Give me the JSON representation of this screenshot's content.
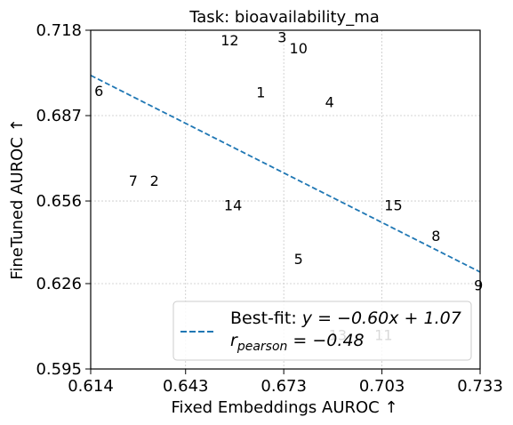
{
  "chart_data": {
    "type": "scatter",
    "title": "Task: bioavailability_ma",
    "xlabel": "Fixed Embeddings AUROC ↑",
    "ylabel": "FineTuned AUROC ↑",
    "xlim": [
      0.614,
      0.733
    ],
    "ylim": [
      0.595,
      0.718
    ],
    "xticks": [
      "0.614",
      "0.643",
      "0.673",
      "0.703",
      "0.733"
    ],
    "yticks": [
      "0.595",
      "0.626",
      "0.656",
      "0.687",
      "0.718"
    ],
    "grid": true,
    "points": [
      {
        "label": "1",
        "x": 0.666,
        "y": 0.6955
      },
      {
        "label": "2",
        "x": 0.6335,
        "y": 0.6635
      },
      {
        "label": "3",
        "x": 0.6725,
        "y": 0.7155
      },
      {
        "label": "4",
        "x": 0.687,
        "y": 0.692
      },
      {
        "label": "5",
        "x": 0.6775,
        "y": 0.635
      },
      {
        "label": "6",
        "x": 0.6165,
        "y": 0.696
      },
      {
        "label": "7",
        "x": 0.627,
        "y": 0.6635
      },
      {
        "label": "8",
        "x": 0.7195,
        "y": 0.6435
      },
      {
        "label": "9",
        "x": 0.7325,
        "y": 0.6255
      },
      {
        "label": "10",
        "x": 0.6775,
        "y": 0.7115
      },
      {
        "label": "11",
        "x": 0.7035,
        "y": 0.6075
      },
      {
        "label": "12",
        "x": 0.6565,
        "y": 0.7145
      },
      {
        "label": "13",
        "x": 0.6895,
        "y": 0.6075
      },
      {
        "label": "14",
        "x": 0.6575,
        "y": 0.6545
      },
      {
        "label": "15",
        "x": 0.7065,
        "y": 0.6545
      }
    ],
    "fit": {
      "slope": -0.6,
      "intercept": 1.07,
      "color": "#1f77b4",
      "style": "dashed"
    },
    "legend": {
      "placement": "lower-right",
      "fit_label": "Best-fit: ",
      "fit_equation": "y = −0.60x + 1.07",
      "r_symbol": "r",
      "r_subscript": "pearson",
      "r_value": " = −0.48"
    }
  }
}
